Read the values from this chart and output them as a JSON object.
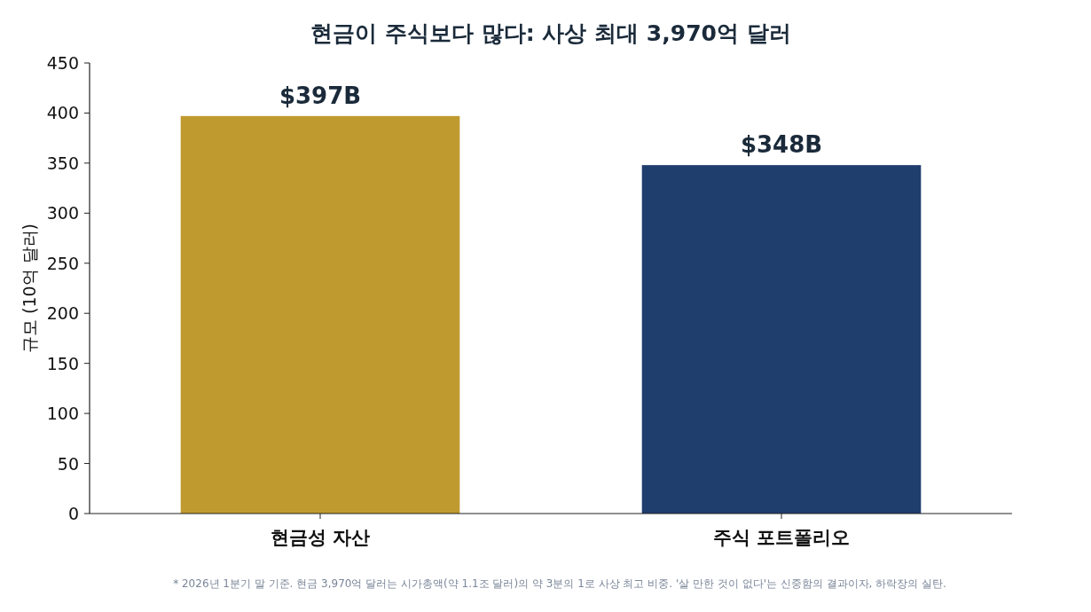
{
  "chart_data": {
    "type": "bar",
    "title": "현금이 주식보다 많다: 사상 최대 3,970억 달러",
    "ylabel": "규모 (10억 달러)",
    "categories": [
      "현금성 자산",
      "주식 포트폴리오"
    ],
    "values": [
      397,
      348
    ],
    "colors": [
      "#bf9a2f",
      "#1f3d6d"
    ],
    "value_labels": [
      "$397B",
      "$348B"
    ],
    "ylim": [
      0,
      450
    ],
    "yticks": [
      0,
      50,
      100,
      150,
      200,
      250,
      300,
      350,
      400,
      450
    ],
    "grid": false,
    "annotations": [
      "* 2026년 1분기 말 기준. 현금 3,970억 달러는 시가총액(약 1.1조 달러)의 약 3분의 1로 사상 최고 비중. '살 만한 것이 없다'는 신중함의 결과이자, 하락장의 실탄."
    ]
  }
}
